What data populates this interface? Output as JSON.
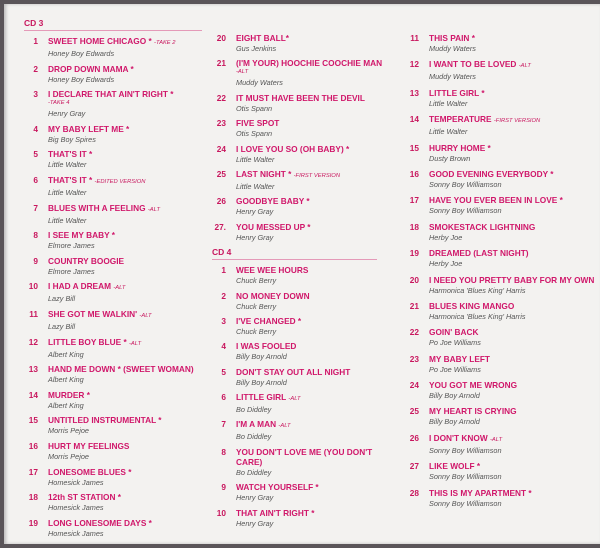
{
  "columns": [
    {
      "sections": [
        {
          "heading": "CD 3",
          "tracks": [
            {
              "num": "1",
              "title": "SWEET HOME CHICAGO *",
              "note": "-TAKE 2",
              "artist": "Honey Boy Edwards"
            },
            {
              "num": "2",
              "title": "DROP DOWN MAMA *",
              "artist": "Honey Boy Edwards"
            },
            {
              "num": "3",
              "title": "I DECLARE THAT AIN'T RIGHT *",
              "note_line": "-TAKE 4",
              "artist": "Henry Gray"
            },
            {
              "num": "4",
              "title": "MY BABY LEFT ME *",
              "artist": "Big Boy Spires"
            },
            {
              "num": "5",
              "title": "THAT'S IT *",
              "artist": "Little Walter"
            },
            {
              "num": "6",
              "title": "THAT'S IT *",
              "note": "-EDITED VERSION",
              "artist": "Little Walter"
            },
            {
              "num": "7",
              "title": "BLUES WITH A FEELING",
              "note": "-ALT",
              "artist": "Little Walter"
            },
            {
              "num": "8",
              "title": "I SEE MY BABY *",
              "artist": "Elmore James"
            },
            {
              "num": "9",
              "title": "COUNTRY BOOGIE",
              "artist": "Elmore James"
            },
            {
              "num": "10",
              "title": "I HAD A DREAM",
              "note": "-ALT",
              "artist": "Lazy Bill"
            },
            {
              "num": "11",
              "title": "SHE GOT ME WALKIN'",
              "note": "-ALT",
              "artist": "Lazy Bill"
            },
            {
              "num": "12",
              "title": "LITTLE BOY BLUE *",
              "note": "-ALT",
              "artist": "Albert King"
            },
            {
              "num": "13",
              "title": "HAND ME DOWN * (SWEET WOMAN)",
              "artist": "Albert King"
            },
            {
              "num": "14",
              "title": "MURDER *",
              "artist": "Albert King"
            },
            {
              "num": "15",
              "title": "UNTITLED INSTRUMENTAL *",
              "artist": "Morris Pejoe"
            },
            {
              "num": "16",
              "title": "HURT MY FEELINGS",
              "artist": "Morris Pejoe"
            },
            {
              "num": "17",
              "title": "LONESOME BLUES *",
              "artist": "Homesick James"
            },
            {
              "num": "18",
              "title": "12th ST STATION *",
              "artist": "Homesick James"
            },
            {
              "num": "19",
              "title": "LONG LONESOME DAYS *",
              "artist": "Homesick James"
            }
          ]
        }
      ]
    },
    {
      "sections": [
        {
          "heading": "",
          "tracks": [
            {
              "num": "20",
              "title": "EIGHT BALL*",
              "artist": "Gus Jenkins"
            },
            {
              "num": "21",
              "title": "(I'M YOUR) HOOCHIE COOCHIE MAN",
              "note_line": "-ALT",
              "artist": "Muddy Waters"
            },
            {
              "num": "22",
              "title": "IT MUST HAVE BEEN THE DEVIL",
              "artist": "Otis Spann"
            },
            {
              "num": "23",
              "title": "FIVE SPOT",
              "artist": "Otis Spann"
            },
            {
              "num": "24",
              "title": "I LOVE YOU SO (OH BABY) *",
              "artist": "Little Walter"
            },
            {
              "num": "25",
              "title": "LAST NIGHT *",
              "note": "-FIRST VERSION",
              "artist": "Little Walter"
            },
            {
              "num": "26",
              "title": "GOODBYE BABY *",
              "artist": "Henry Gray"
            },
            {
              "num": "27.",
              "title": "YOU MESSED UP *",
              "artist": "Henry Gray"
            }
          ]
        },
        {
          "heading": "CD 4",
          "tracks": [
            {
              "num": "1",
              "title": "WEE WEE HOURS",
              "artist": "Chuck Berry"
            },
            {
              "num": "2",
              "title": "NO MONEY DOWN",
              "artist": "Chuck Berry"
            },
            {
              "num": "3",
              "title": "I'VE CHANGED *",
              "artist": "Chuck Berry"
            },
            {
              "num": "4",
              "title": "I WAS FOOLED",
              "artist": "Billy Boy Arnold"
            },
            {
              "num": "5",
              "title": "DON'T STAY OUT ALL NIGHT",
              "artist": "Billy Boy Arnold"
            },
            {
              "num": "6",
              "title": "LITTLE GIRL",
              "note": "-ALT",
              "artist": "Bo Diddley"
            },
            {
              "num": "7",
              "title": "I'M A MAN",
              "note": "-ALT",
              "artist": "Bo Diddley"
            },
            {
              "num": "8",
              "title": "YOU DON'T LOVE ME (YOU DON'T CARE)",
              "artist": "Bo Diddley"
            },
            {
              "num": "9",
              "title": "WATCH YOURSELF *",
              "artist": "Henry Gray"
            },
            {
              "num": "10",
              "title": "THAT AIN'T RIGHT *",
              "artist": "Henry Gray"
            }
          ]
        }
      ]
    },
    {
      "sections": [
        {
          "heading": "",
          "tracks": [
            {
              "num": "11",
              "title": "THIS PAIN *",
              "artist": "Muddy Waters"
            },
            {
              "num": "12",
              "title": "I WANT TO BE LOVED",
              "note": "-ALT",
              "artist": "Muddy Waters"
            },
            {
              "num": "13",
              "title": "LITTLE GIRL *",
              "artist": "Little Walter"
            },
            {
              "num": "14",
              "title": "TEMPERATURE",
              "note": "-FIRST VERSION",
              "artist": "Little Walter"
            },
            {
              "num": "15",
              "title": "HURRY HOME *",
              "artist": "Dusty Brown"
            },
            {
              "num": "16",
              "title": "GOOD EVENING EVERYBODY *",
              "artist": "Sonny Boy Williamson"
            },
            {
              "num": "17",
              "title": "HAVE YOU EVER BEEN IN LOVE *",
              "artist": "Sonny Boy Williamson"
            },
            {
              "num": "18",
              "title": "SMOKESTACK LIGHTNING",
              "artist": "Herby Joe"
            },
            {
              "num": "19",
              "title": "DREAMED (LAST NIGHT)",
              "artist": "Herby Joe"
            },
            {
              "num": "20",
              "title": "I NEED YOU PRETTY BABY FOR MY OWN",
              "artist": "Harmonica 'Blues King' Harris"
            },
            {
              "num": "21",
              "title": "BLUES KING MANGO",
              "artist": "Harmonica 'Blues King' Harris"
            },
            {
              "num": "22",
              "title": "GOIN' BACK",
              "artist": "Po Joe Williams"
            },
            {
              "num": "23",
              "title": "MY BABY LEFT",
              "artist": "Po Joe Williams"
            },
            {
              "num": "24",
              "title": "YOU GOT ME WRONG",
              "artist": "Billy Boy Arnold"
            },
            {
              "num": "25",
              "title": "MY HEART IS CRYING",
              "artist": "Billy Boy Arnold"
            },
            {
              "num": "26",
              "title": "I DON'T KNOW",
              "note": "-ALT",
              "artist": "Sonny Boy Williamson"
            },
            {
              "num": "27",
              "title": "LIKE WOLF *",
              "artist": "Sonny Boy Williamson"
            },
            {
              "num": "28",
              "title": "THIS IS MY APARTMENT *",
              "artist": "Sonny Boy Williamson"
            }
          ]
        }
      ]
    }
  ],
  "colors": {
    "title": "#d0176a",
    "artist": "#555555",
    "background": "#f3f2f0"
  }
}
